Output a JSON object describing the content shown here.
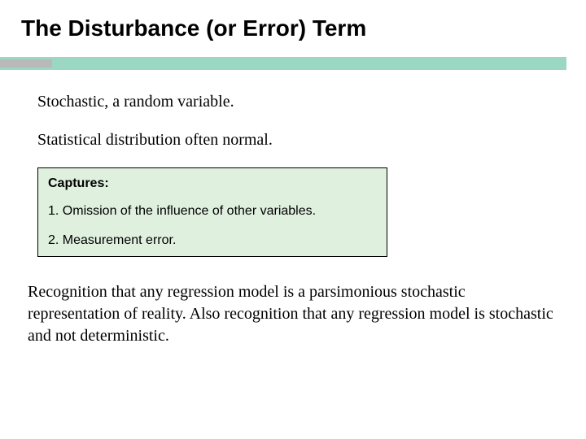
{
  "title": "The Disturbance (or Error) Term",
  "accent": {
    "grey_color": "#b9b9b9",
    "green_color": "#9cd7c3"
  },
  "points": [
    "Stochastic, a random variable.",
    "Statistical distribution often normal."
  ],
  "captures": {
    "box_background": "#dff0df",
    "border_color": "#000000",
    "header": "Captures:",
    "items": [
      "1. Omission of the influence of other variables.",
      "2. Measurement error."
    ]
  },
  "closing": "Recognition that any regression model is a parsimonious stochastic representation of reality. Also recognition that any regression model is stochastic and not deterministic.",
  "typography": {
    "title_fontsize": 28,
    "body_fontsize": 20,
    "captures_fontsize": 16
  },
  "background_color": "#ffffff"
}
